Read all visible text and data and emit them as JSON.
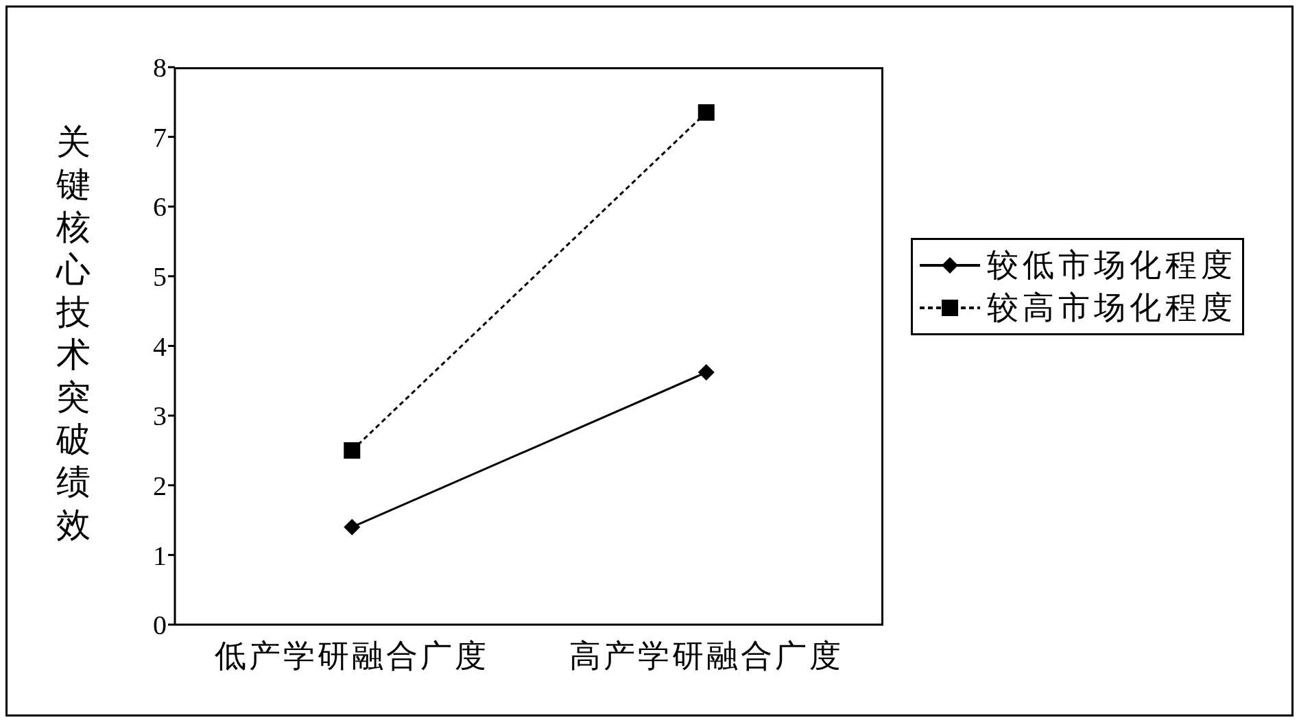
{
  "chart_data": {
    "type": "line",
    "ylabel": "关键核心技术突破绩效",
    "categories": [
      "低产学研融合广度",
      "高产学研融合广度"
    ],
    "series": [
      {
        "name": "较低市场化程度",
        "color": "#000000",
        "values": [
          1.4,
          3.62
        ],
        "marker": "diamond",
        "line_style": "solid"
      },
      {
        "name": "较高市场化程度",
        "color": "#000000",
        "values": [
          2.5,
          7.35
        ],
        "marker": "square",
        "line_style": "dashed"
      }
    ],
    "ylim": [
      0,
      8
    ],
    "yticks": [
      0,
      1,
      2,
      3,
      4,
      5,
      6,
      7,
      8
    ],
    "grid": false,
    "legend": "right"
  }
}
